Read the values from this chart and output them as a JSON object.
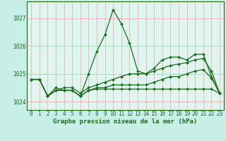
{
  "title": "Graphe pression niveau de la mer (hPa)",
  "bg_color": "#c8eee8",
  "plot_bg_color": "#dff5f0",
  "grid_color": "#f0b8b8",
  "line_color": "#1a6b1a",
  "marker_color": "#1a6b1a",
  "xlim": [
    -0.5,
    23.5
  ],
  "ylim": [
    1023.7,
    1027.6
  ],
  "yticks": [
    1024,
    1025,
    1026,
    1027
  ],
  "xticks": [
    0,
    1,
    2,
    3,
    4,
    5,
    6,
    7,
    8,
    9,
    10,
    11,
    12,
    13,
    14,
    15,
    16,
    17,
    18,
    19,
    20,
    21,
    22,
    23
  ],
  "series": [
    [
      1024.8,
      1024.8,
      1024.2,
      1024.5,
      1024.4,
      1024.4,
      1024.2,
      1025.0,
      1025.8,
      1026.4,
      1027.3,
      1026.8,
      1026.1,
      1025.1,
      1025.0,
      1025.2,
      1025.5,
      1025.6,
      1025.6,
      1025.5,
      1025.7,
      1025.7,
      1024.9,
      1024.3
    ],
    [
      1024.8,
      1024.8,
      1024.2,
      1024.4,
      1024.4,
      1024.4,
      1024.2,
      1024.4,
      1024.45,
      1024.45,
      1024.45,
      1024.45,
      1024.45,
      1024.45,
      1024.45,
      1024.45,
      1024.45,
      1024.45,
      1024.45,
      1024.45,
      1024.45,
      1024.45,
      1024.45,
      1024.3
    ],
    [
      1024.8,
      1024.8,
      1024.2,
      1024.4,
      1024.5,
      1024.5,
      1024.3,
      1024.5,
      1024.6,
      1024.7,
      1024.8,
      1024.9,
      1025.0,
      1025.0,
      1025.0,
      1025.1,
      1025.2,
      1025.3,
      1025.35,
      1025.4,
      1025.5,
      1025.55,
      1025.1,
      1024.3
    ],
    [
      1024.8,
      1024.8,
      1024.2,
      1024.4,
      1024.4,
      1024.4,
      1024.2,
      1024.4,
      1024.5,
      1024.5,
      1024.6,
      1024.6,
      1024.6,
      1024.6,
      1024.6,
      1024.7,
      1024.8,
      1024.9,
      1024.9,
      1025.0,
      1025.1,
      1025.15,
      1024.85,
      1024.3
    ]
  ],
  "tick_fontsize": 5.5,
  "label_fontsize": 6.5,
  "figsize": [
    3.2,
    2.0
  ],
  "dpi": 100
}
